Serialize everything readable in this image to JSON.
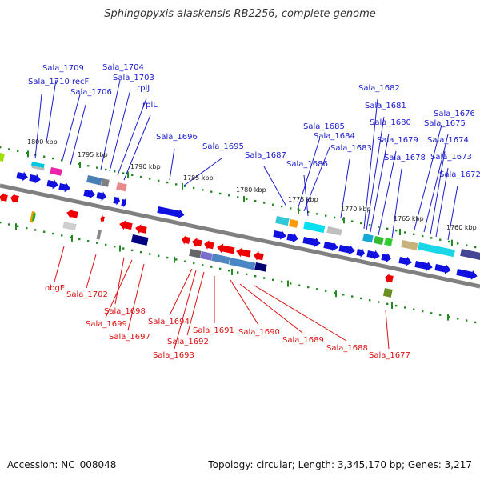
{
  "title": "Sphingopyxis alaskensis RB2256, complete genome",
  "footer": {
    "accession": "Accession: NC_008048",
    "stats": "Topology: circular; Length: 3,345,170 bp; Genes: 3,217"
  },
  "colors": {
    "forward_label": "#1a1acc",
    "reverse_label": "#dd1111",
    "forward_gene": "#1010e0",
    "reverse_gene": "#ee0000",
    "backbone": "#808080",
    "tick": "#228b22",
    "scale_label": "#222222"
  },
  "scale_labels": [
    "1800 kbp",
    "1795 kbp",
    "1790 kbp",
    "1785 kbp",
    "1780 kbp",
    "1775 kbp",
    "1770 kbp",
    "1765 kbp",
    "1760 kbp"
  ],
  "forward_labels": [
    "Sala_1709",
    "Sala_1710",
    "recF",
    "Sala_1706",
    "Sala_1704",
    "Sala_1703",
    "rplJ",
    "rplL",
    "Sala_1696",
    "Sala_1695",
    "Sala_1687",
    "Sala_1685",
    "Sala_1684",
    "Sala_1686",
    "Sala_1683",
    "Sala_1682",
    "Sala_1681",
    "Sala_1680",
    "Sala_1679",
    "Sala_1678",
    "Sala_1676",
    "Sala_1675",
    "Sala_1674",
    "Sala_1673",
    "Sala_1672"
  ],
  "reverse_labels": [
    "obgE",
    "Sala_1702",
    "Sala_1698",
    "Sala_1699",
    "Sala_1697",
    "Sala_1694",
    "Sala_1692",
    "Sala_1693",
    "Sala_1691",
    "Sala_1690",
    "Sala_1689",
    "Sala_1688",
    "Sala_1677"
  ]
}
